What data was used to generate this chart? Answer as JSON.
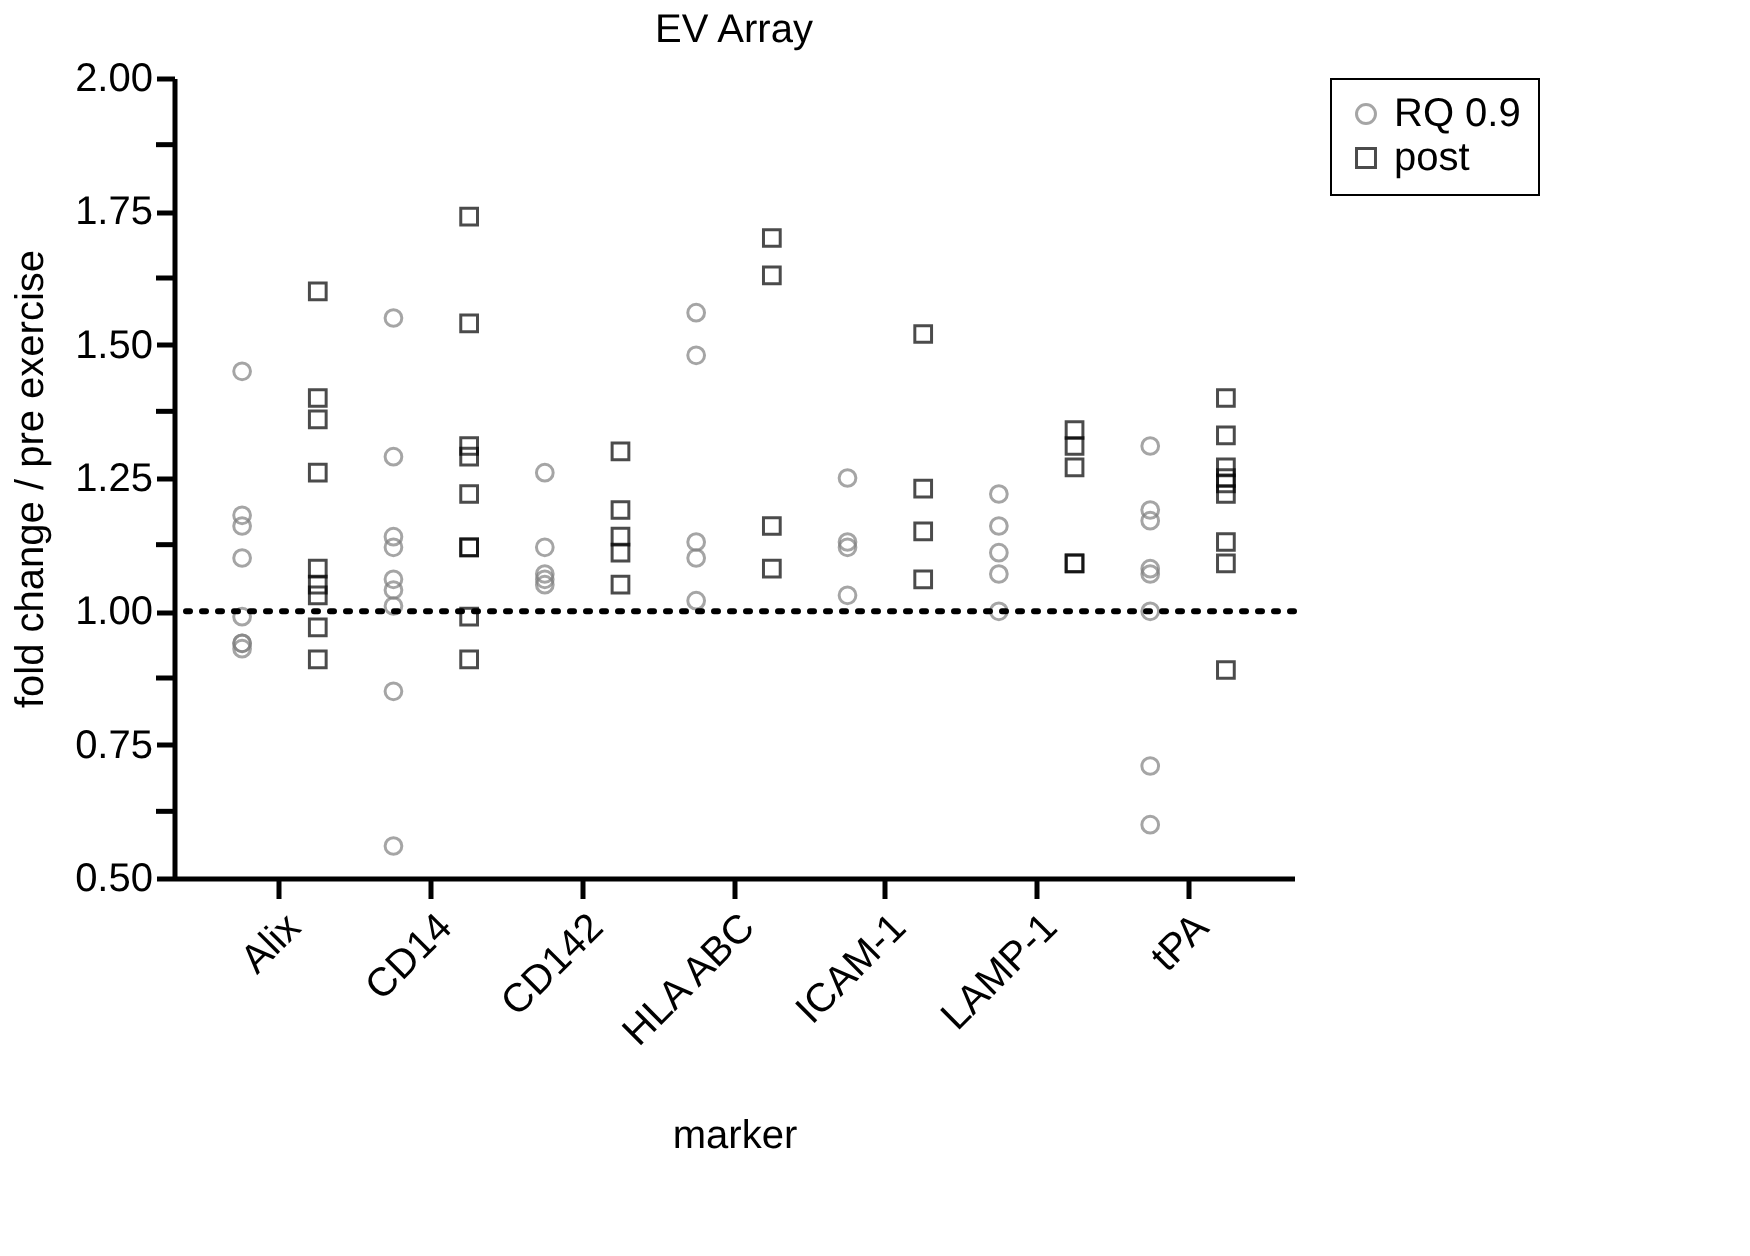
{
  "chart_data": {
    "type": "scatter",
    "title": "EV Array",
    "xlabel": "marker",
    "ylabel": "fold change / pre exercise",
    "categories": [
      "Alix",
      "CD14",
      "CD142",
      "HLA ABC",
      "ICAM-1",
      "LAMP-1",
      "tPA"
    ],
    "series": [
      {
        "name": "RQ 0.9",
        "color": "#808080",
        "marker": "circle",
        "x": [
          "Alix",
          "Alix",
          "Alix",
          "Alix",
          "Alix",
          "Alix",
          "Alix",
          "Alix",
          "CD14",
          "CD14",
          "CD14",
          "CD14",
          "CD14",
          "CD14",
          "CD14",
          "CD14",
          "CD14",
          "CD142",
          "CD142",
          "CD142",
          "CD142",
          "CD142",
          "HLA ABC",
          "HLA ABC",
          "HLA ABC",
          "HLA ABC",
          "HLA ABC",
          "ICAM-1",
          "ICAM-1",
          "ICAM-1",
          "ICAM-1",
          "LAMP-1",
          "LAMP-1",
          "LAMP-1",
          "LAMP-1",
          "LAMP-1",
          "tPA",
          "tPA",
          "tPA",
          "tPA",
          "tPA",
          "tPA",
          "tPA",
          "tPA"
        ],
        "values": [
          1.45,
          1.18,
          1.16,
          1.1,
          0.99,
          0.94,
          0.94,
          0.93,
          1.55,
          1.29,
          1.14,
          1.12,
          1.06,
          1.04,
          1.01,
          0.85,
          0.56,
          1.26,
          1.12,
          1.07,
          1.06,
          1.05,
          1.56,
          1.48,
          1.13,
          1.1,
          1.02,
          1.25,
          1.13,
          1.12,
          1.03,
          1.22,
          1.16,
          1.11,
          1.07,
          1.0,
          1.31,
          1.19,
          1.17,
          1.08,
          1.07,
          1.0,
          0.71,
          0.6
        ]
      },
      {
        "name": "post",
        "color": "#000000",
        "marker": "square",
        "x": [
          "Alix",
          "Alix",
          "Alix",
          "Alix",
          "Alix",
          "Alix",
          "Alix",
          "Alix",
          "Alix",
          "CD14",
          "CD14",
          "CD14",
          "CD14",
          "CD14",
          "CD14",
          "CD14",
          "CD14",
          "CD14",
          "CD142",
          "CD142",
          "CD142",
          "CD142",
          "CD142",
          "HLA ABC",
          "HLA ABC",
          "HLA ABC",
          "HLA ABC",
          "ICAM-1",
          "ICAM-1",
          "ICAM-1",
          "ICAM-1",
          "LAMP-1",
          "LAMP-1",
          "LAMP-1",
          "LAMP-1",
          "LAMP-1",
          "tPA",
          "tPA",
          "tPA",
          "tPA",
          "tPA",
          "tPA",
          "tPA",
          "tPA",
          "tPA"
        ],
        "values": [
          1.6,
          1.4,
          1.36,
          1.26,
          1.08,
          1.05,
          1.03,
          0.97,
          0.91,
          1.74,
          1.54,
          1.31,
          1.29,
          1.22,
          1.12,
          1.12,
          0.99,
          0.91,
          1.3,
          1.19,
          1.14,
          1.11,
          1.05,
          1.7,
          1.63,
          1.16,
          1.08,
          1.52,
          1.23,
          1.15,
          1.06,
          1.34,
          1.31,
          1.27,
          1.09,
          1.09,
          1.4,
          1.33,
          1.27,
          1.25,
          1.24,
          1.22,
          1.13,
          1.09,
          0.89
        ]
      }
    ],
    "ylim": [
      0.5,
      2.0
    ],
    "yticks": [
      {
        "value": 0.5,
        "label": "0.50"
      },
      {
        "value": 0.625,
        "label": null
      },
      {
        "value": 0.75,
        "label": "0.75"
      },
      {
        "value": 0.875,
        "label": null
      },
      {
        "value": 1.0,
        "label": "1.00"
      },
      {
        "value": 1.125,
        "label": null
      },
      {
        "value": 1.25,
        "label": "1.25"
      },
      {
        "value": 1.375,
        "label": null
      },
      {
        "value": 1.5,
        "label": "1.50"
      },
      {
        "value": 1.625,
        "label": null
      },
      {
        "value": 1.75,
        "label": "1.75"
      },
      {
        "value": 1.875,
        "label": null
      },
      {
        "value": 2.0,
        "label": "2.00"
      }
    ],
    "ref_lines": [
      {
        "axis": "y",
        "value": 1.0,
        "line_style": "dotted",
        "color": "#000000"
      }
    ],
    "grid": false,
    "legend": "top right"
  }
}
